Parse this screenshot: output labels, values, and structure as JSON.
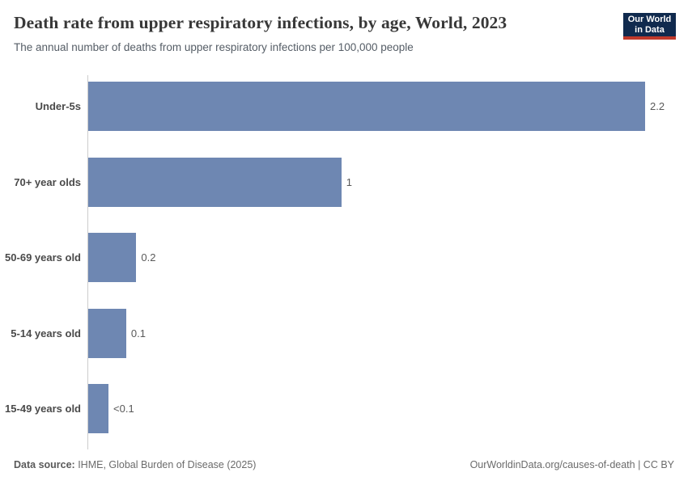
{
  "header": {
    "title": "Death rate from upper respiratory infections, by age, World, 2023",
    "subtitle": "The annual number of deaths from upper respiratory infections per 100,000 people"
  },
  "logo": {
    "line1": "Our World",
    "line2": "in Data",
    "bg_color": "#102a4e",
    "accent_color": "#c0392b"
  },
  "chart_data": {
    "type": "bar",
    "orientation": "horizontal",
    "title": "Death rate from upper respiratory infections, by age, World, 2023",
    "xlabel": "",
    "ylabel": "",
    "unit": "deaths per 100,000 people",
    "categories": [
      "Under-5s",
      "70+ year olds",
      "50-69 years old",
      "5-14 years old",
      "15-49 years old"
    ],
    "values": [
      2.2,
      1,
      0.19,
      0.15,
      0.08
    ],
    "value_labels": [
      "2.2",
      "1",
      "0.2",
      "0.1",
      "<0.1"
    ],
    "xlim": [
      0,
      2.2
    ],
    "bar_color": "#6e87b2",
    "grid": false,
    "legend": null
  },
  "footer": {
    "source_label": "Data source:",
    "source_text": " IHME, Global Burden of Disease (2025)",
    "right_text": "OurWorldinData.org/causes-of-death | CC BY"
  }
}
